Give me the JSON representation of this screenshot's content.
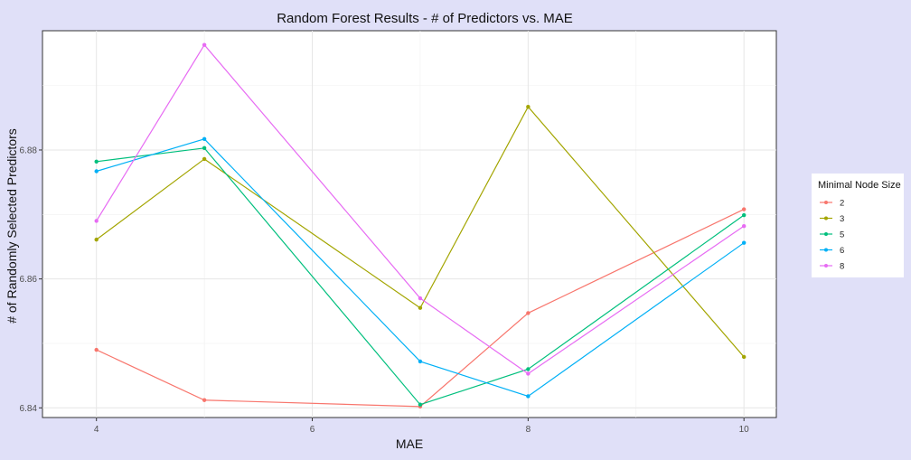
{
  "chart_data": {
    "type": "line",
    "title": "Random Forest Results - # of Predictors vs. MAE",
    "xlabel": "MAE",
    "ylabel": "# of Randomly Selected Predictors",
    "x": [
      4,
      5,
      7,
      8,
      10
    ],
    "xlim": [
      3.5,
      10.3
    ],
    "ylim": [
      6.8385,
      6.8985
    ],
    "x_ticks": [
      4,
      6,
      8,
      10
    ],
    "y_ticks": [
      6.84,
      6.86,
      6.88
    ],
    "x_tick_labels": [
      "4",
      "6",
      "8",
      "10"
    ],
    "y_tick_labels": [
      "6.84",
      "6.86",
      "6.88"
    ],
    "grid": true,
    "legend": {
      "title": "Minimal Node Size",
      "position": "right"
    },
    "series": [
      {
        "name": "2",
        "color": "#F8766D",
        "values": [
          6.849,
          6.8412,
          6.8402,
          6.8547,
          6.8708
        ]
      },
      {
        "name": "3",
        "color": "#A3A500",
        "values": [
          6.8661,
          6.8786,
          6.8555,
          6.8867,
          6.8479
        ]
      },
      {
        "name": "5",
        "color": "#00BF7D",
        "values": [
          6.8782,
          6.8803,
          6.8405,
          6.846,
          6.8699
        ]
      },
      {
        "name": "6",
        "color": "#00B0F6",
        "values": [
          6.8767,
          6.8817,
          6.8472,
          6.8418,
          6.8656
        ]
      },
      {
        "name": "8",
        "color": "#E76BF3",
        "values": [
          6.869,
          6.8963,
          6.857,
          6.8453,
          6.8682
        ]
      }
    ]
  }
}
